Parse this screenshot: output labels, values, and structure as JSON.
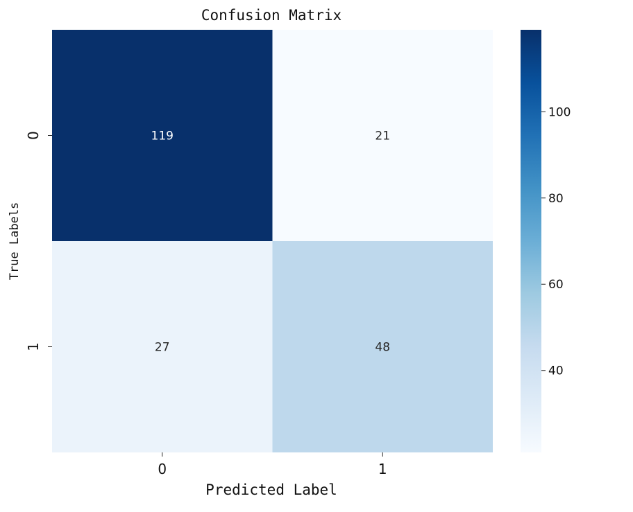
{
  "chart_data": {
    "type": "heatmap",
    "title": "Confusion Matrix",
    "xlabel": "Predicted Label",
    "ylabel": "True Labels",
    "x_categories": [
      "0",
      "1"
    ],
    "y_categories": [
      "0",
      "1"
    ],
    "values": [
      [
        119,
        21
      ],
      [
        27,
        48
      ]
    ],
    "colormap": "Blues",
    "color_range": [
      21,
      119
    ],
    "colorbar_ticks": [
      "40",
      "60",
      "80",
      "100"
    ],
    "colorbar_tick_values": [
      40,
      60,
      80,
      100
    ]
  }
}
